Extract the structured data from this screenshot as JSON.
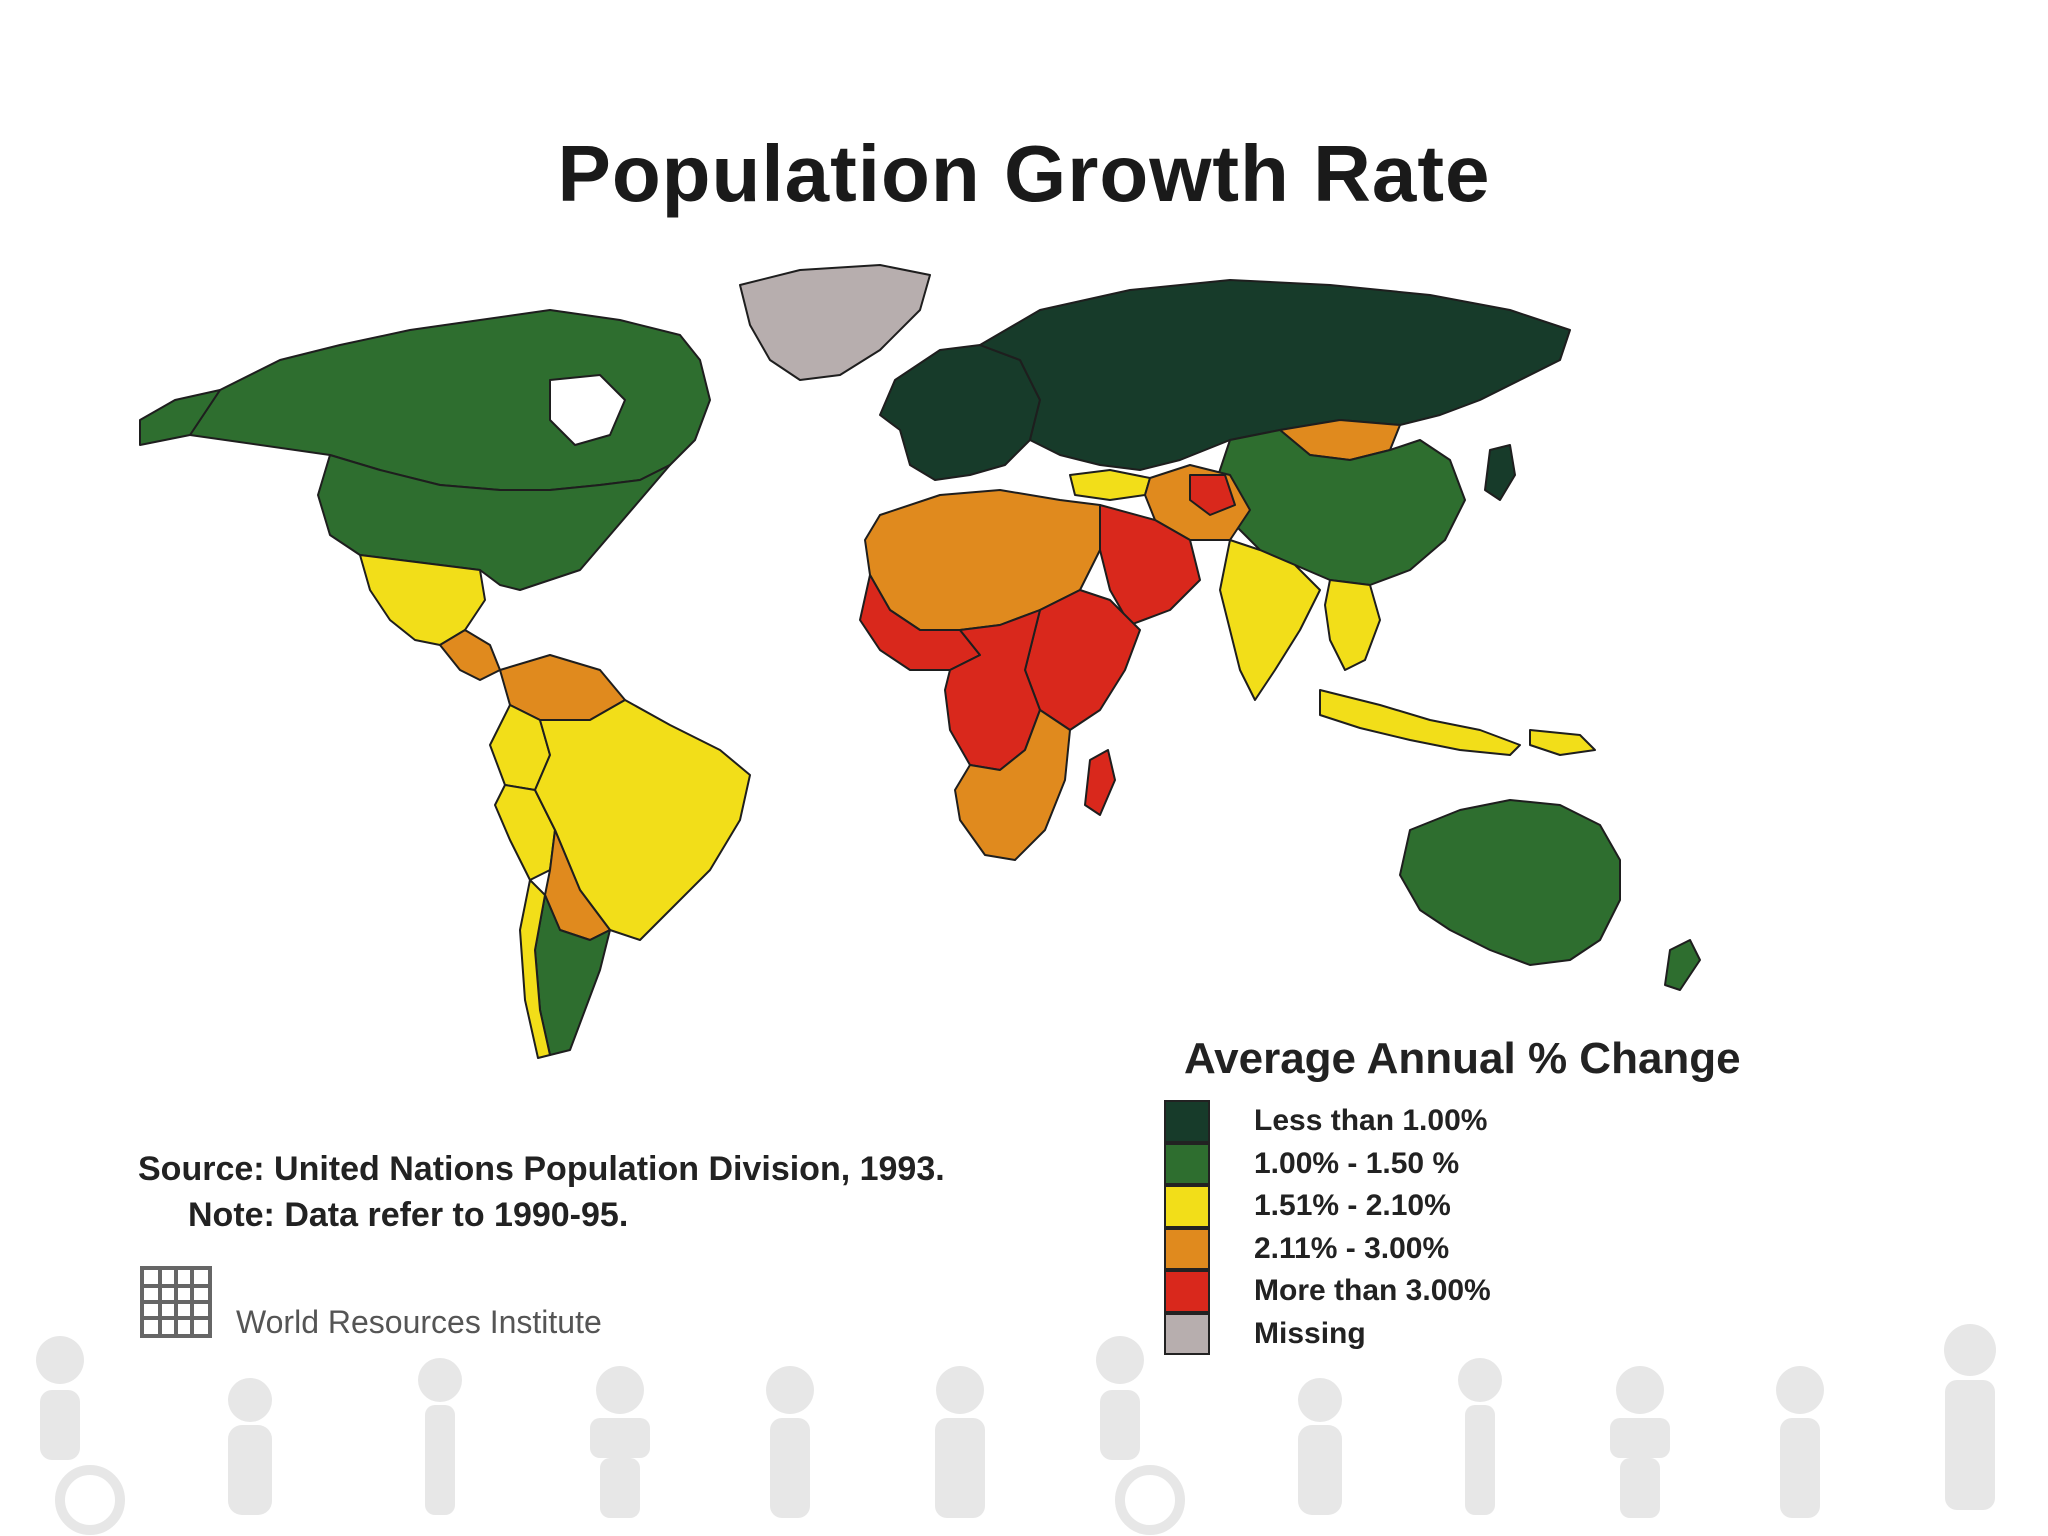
{
  "title": "Population Growth Rate",
  "legend": {
    "title": "Average Annual % Change",
    "items": [
      {
        "label": "Less than 1.00%",
        "color": "#173b2a",
        "icon": "swatch-dark-green"
      },
      {
        "label": "1.00% - 1.50 %",
        "color": "#2e6e2f",
        "icon": "swatch-green"
      },
      {
        "label": "1.51% - 2.10%",
        "color": "#f2de19",
        "icon": "swatch-yellow"
      },
      {
        "label": "2.11% - 3.00%",
        "color": "#e08a1e",
        "icon": "swatch-orange"
      },
      {
        "label": "More than 3.00%",
        "color": "#d9281c",
        "icon": "swatch-red"
      },
      {
        "label": "Missing",
        "color": "#b7aeae",
        "icon": "swatch-gray"
      }
    ]
  },
  "source": "Source: United Nations Population Division, 1993.",
  "note": "Note: Data refer to 1990-95.",
  "publisher": "World Resources Institute",
  "regions": [
    {
      "name": "Canada",
      "category": "1.00% - 1.50 %"
    },
    {
      "name": "United States",
      "category": "1.00% - 1.50 %"
    },
    {
      "name": "Greenland",
      "category": "Missing"
    },
    {
      "name": "Mexico",
      "category": "1.51% - 2.10%"
    },
    {
      "name": "Central America",
      "category": "2.11% - 3.00%"
    },
    {
      "name": "Brazil",
      "category": "1.51% - 2.10%"
    },
    {
      "name": "Venezuela",
      "category": "2.11% - 3.00%"
    },
    {
      "name": "Colombia",
      "category": "1.51% - 2.10%"
    },
    {
      "name": "Peru",
      "category": "1.51% - 2.10%"
    },
    {
      "name": "Bolivia",
      "category": "2.11% - 3.00%"
    },
    {
      "name": "Paraguay",
      "category": "2.11% - 3.00%"
    },
    {
      "name": "Argentina",
      "category": "1.00% - 1.50 %"
    },
    {
      "name": "Chile",
      "category": "1.51% - 2.10%"
    },
    {
      "name": "Europe",
      "category": "Less than 1.00%"
    },
    {
      "name": "Former USSR",
      "category": "Less than 1.00%"
    },
    {
      "name": "Turkey",
      "category": "1.51% - 2.10%"
    },
    {
      "name": "North Africa",
      "category": "2.11% - 3.00%"
    },
    {
      "name": "Sahel",
      "category": "More than 3.00%"
    },
    {
      "name": "West Africa",
      "category": "More than 3.00%"
    },
    {
      "name": "Central Africa",
      "category": "More than 3.00%"
    },
    {
      "name": "East Africa",
      "category": "More than 3.00%"
    },
    {
      "name": "Southern Africa",
      "category": "2.11% - 3.00%"
    },
    {
      "name": "Madagascar",
      "category": "More than 3.00%"
    },
    {
      "name": "Arabian Peninsula",
      "category": "More than 3.00%"
    },
    {
      "name": "Iran",
      "category": "2.11% - 3.00%"
    },
    {
      "name": "Afghanistan",
      "category": "More than 3.00%"
    },
    {
      "name": "Pakistan",
      "category": "2.11% - 3.00%"
    },
    {
      "name": "India",
      "category": "1.51% - 2.10%"
    },
    {
      "name": "Bangladesh",
      "category": "2.11% - 3.00%"
    },
    {
      "name": "Mongolia",
      "category": "2.11% - 3.00%"
    },
    {
      "name": "China",
      "category": "1.00% - 1.50 %"
    },
    {
      "name": "Southeast Asia",
      "category": "1.51% - 2.10%"
    },
    {
      "name": "Indonesia",
      "category": "1.51% - 2.10%"
    },
    {
      "name": "Papua New Guinea",
      "category": "1.51% - 2.10%"
    },
    {
      "name": "Japan",
      "category": "Less than 1.00%"
    },
    {
      "name": "Australia",
      "category": "1.00% - 1.50 %"
    },
    {
      "name": "New Zealand",
      "category": "1.00% - 1.50 %"
    }
  ]
}
